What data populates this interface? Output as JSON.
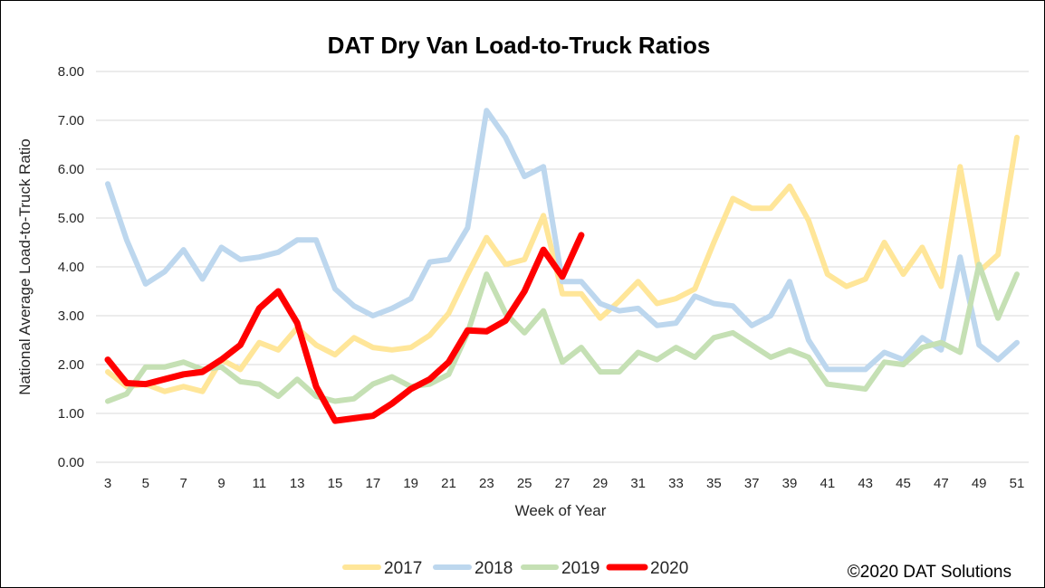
{
  "chart_data": {
    "type": "line",
    "title": "DAT Dry Van Load-to-Truck Ratios",
    "xlabel": "Week of Year",
    "ylabel": "National Average Load-to-Truck Ratio",
    "xlim": [
      3,
      51
    ],
    "ylim": [
      0,
      8
    ],
    "yticks": [
      "0.00",
      "1.00",
      "2.00",
      "3.00",
      "4.00",
      "5.00",
      "6.00",
      "7.00",
      "8.00"
    ],
    "xticks": [
      3,
      5,
      7,
      9,
      11,
      13,
      15,
      17,
      19,
      21,
      23,
      25,
      27,
      29,
      31,
      33,
      35,
      37,
      39,
      41,
      43,
      45,
      47,
      49,
      51
    ],
    "grid": true,
    "legend_position": "bottom",
    "series": [
      {
        "name": "2017",
        "color": "#FFE699",
        "x": [
          3,
          4,
          5,
          6,
          7,
          8,
          9,
          10,
          11,
          12,
          13,
          14,
          15,
          16,
          17,
          18,
          19,
          20,
          21,
          22,
          23,
          24,
          25,
          26,
          27,
          28,
          29,
          30,
          31,
          32,
          33,
          34,
          35,
          36,
          37,
          38,
          39,
          40,
          41,
          42,
          43,
          44,
          45,
          46,
          47,
          48,
          49,
          50,
          51
        ],
        "values": [
          1.85,
          1.55,
          1.6,
          1.45,
          1.55,
          1.45,
          2.1,
          1.9,
          2.45,
          2.3,
          2.75,
          2.4,
          2.2,
          2.55,
          2.35,
          2.3,
          2.35,
          2.6,
          3.05,
          3.85,
          4.6,
          4.05,
          4.15,
          5.05,
          3.45,
          3.45,
          2.95,
          3.3,
          3.7,
          3.25,
          3.35,
          3.55,
          4.5,
          5.4,
          5.2,
          5.2,
          5.65,
          4.95,
          3.85,
          3.6,
          3.75,
          4.5,
          3.85,
          4.4,
          3.6,
          6.05,
          3.9,
          4.25,
          6.65
        ]
      },
      {
        "name": "2018",
        "color": "#BDD7EE",
        "x": [
          3,
          4,
          5,
          6,
          7,
          8,
          9,
          10,
          11,
          12,
          13,
          14,
          15,
          16,
          17,
          18,
          19,
          20,
          21,
          22,
          23,
          24,
          25,
          26,
          27,
          28,
          29,
          30,
          31,
          32,
          33,
          34,
          35,
          36,
          37,
          38,
          39,
          40,
          41,
          42,
          43,
          44,
          45,
          46,
          47,
          48,
          49,
          50,
          51
        ],
        "values": [
          5.7,
          4.55,
          3.65,
          3.9,
          4.35,
          3.75,
          4.4,
          4.15,
          4.2,
          4.3,
          4.55,
          4.55,
          3.55,
          3.2,
          3.0,
          3.15,
          3.35,
          4.1,
          4.15,
          4.8,
          7.2,
          6.65,
          5.85,
          6.05,
          3.7,
          3.7,
          3.25,
          3.1,
          3.15,
          2.8,
          2.85,
          3.4,
          3.25,
          3.2,
          2.8,
          3.0,
          3.7,
          2.5,
          1.9,
          1.9,
          1.9,
          2.25,
          2.1,
          2.55,
          2.3,
          4.2,
          2.4,
          2.1,
          2.45
        ]
      },
      {
        "name": "2019",
        "color": "#C5E0B4",
        "x": [
          3,
          4,
          5,
          6,
          7,
          8,
          9,
          10,
          11,
          12,
          13,
          14,
          15,
          16,
          17,
          18,
          19,
          20,
          21,
          22,
          23,
          24,
          25,
          26,
          27,
          28,
          29,
          30,
          31,
          32,
          33,
          34,
          35,
          36,
          37,
          38,
          39,
          40,
          41,
          42,
          43,
          44,
          45,
          46,
          47,
          48,
          49,
          50,
          51
        ],
        "values": [
          1.25,
          1.4,
          1.95,
          1.95,
          2.05,
          1.9,
          1.95,
          1.65,
          1.6,
          1.35,
          1.7,
          1.35,
          1.25,
          1.3,
          1.6,
          1.75,
          1.55,
          1.6,
          1.8,
          2.65,
          3.85,
          3.05,
          2.65,
          3.1,
          2.05,
          2.35,
          1.85,
          1.85,
          2.25,
          2.1,
          2.35,
          2.15,
          2.55,
          2.65,
          2.4,
          2.15,
          2.3,
          2.15,
          1.6,
          1.55,
          1.5,
          2.05,
          2.0,
          2.35,
          2.45,
          2.25,
          4.05,
          2.95,
          3.85
        ]
      },
      {
        "name": "2020",
        "color": "#FF0000",
        "x": [
          3,
          4,
          5,
          6,
          7,
          8,
          9,
          10,
          11,
          12,
          13,
          14,
          15,
          16,
          17,
          18,
          19,
          20,
          21,
          22,
          23,
          24,
          25,
          26,
          27,
          28
        ],
        "values": [
          2.1,
          1.62,
          1.6,
          1.7,
          1.8,
          1.85,
          2.1,
          2.4,
          3.15,
          3.5,
          2.85,
          1.55,
          0.85,
          0.9,
          0.95,
          1.2,
          1.5,
          1.7,
          2.05,
          2.7,
          2.68,
          2.9,
          3.5,
          4.35,
          3.8,
          4.65
        ]
      }
    ]
  },
  "credit": "©2020 DAT Solutions"
}
